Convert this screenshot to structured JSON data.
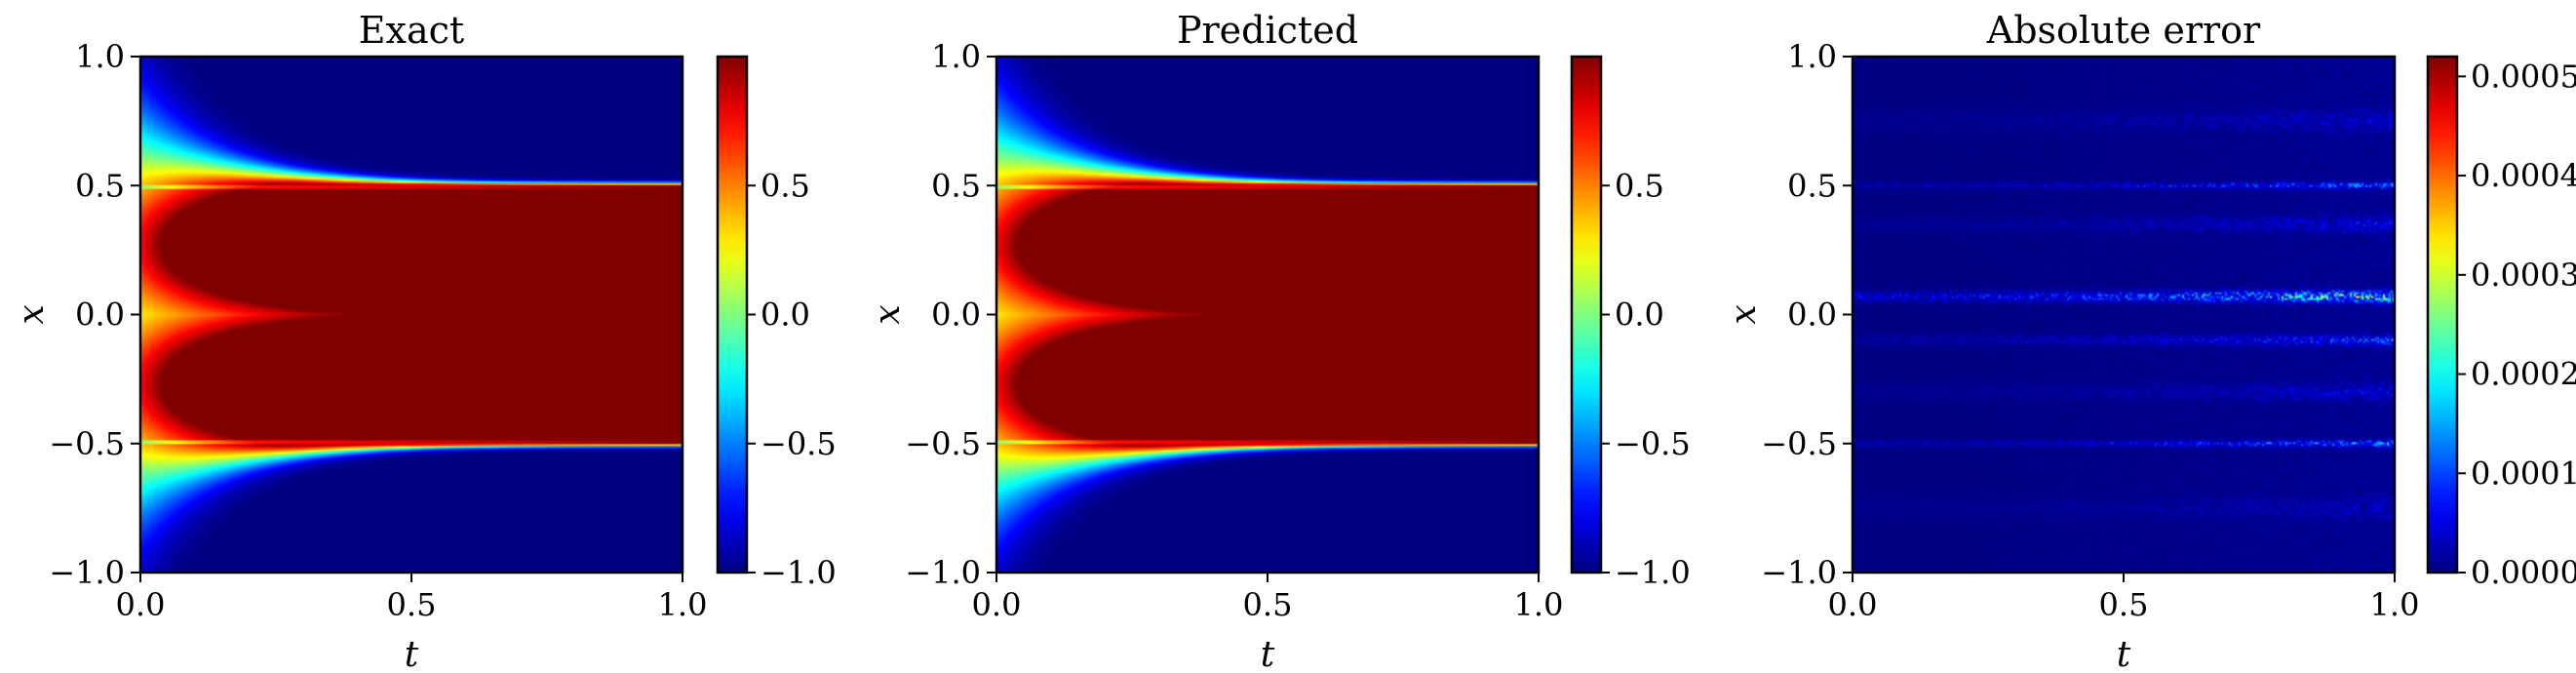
{
  "chart_data": [
    {
      "type": "heatmap",
      "title": "Exact",
      "xlabel": "t",
      "ylabel": "x",
      "xlim": [
        0.0,
        1.0
      ],
      "ylim": [
        -1.0,
        1.0
      ],
      "xticks": [
        "0.0",
        "0.5",
        "1.0"
      ],
      "yticks": [
        "−1.0",
        "−0.5",
        "0.0",
        "0.5",
        "1.0"
      ],
      "colormap": "jet",
      "colorbar": {
        "range": [
          -1.0,
          1.0
        ],
        "ticks": [
          "−1.0",
          "−0.5",
          "0.0",
          "0.5"
        ]
      },
      "field": "solution"
    },
    {
      "type": "heatmap",
      "title": "Predicted",
      "xlabel": "t",
      "ylabel": "x",
      "xlim": [
        0.0,
        1.0
      ],
      "ylim": [
        -1.0,
        1.0
      ],
      "xticks": [
        "0.0",
        "0.5",
        "1.0"
      ],
      "yticks": [
        "−1.0",
        "−0.5",
        "0.0",
        "0.5",
        "1.0"
      ],
      "colormap": "jet",
      "colorbar": {
        "range": [
          -1.0,
          1.0
        ],
        "ticks": [
          "−1.0",
          "−0.5",
          "0.0",
          "0.5"
        ]
      },
      "field": "solution"
    },
    {
      "type": "heatmap",
      "title": "Absolute error",
      "xlabel": "t",
      "ylabel": "x",
      "xlim": [
        0.0,
        1.0
      ],
      "ylim": [
        -1.0,
        1.0
      ],
      "xticks": [
        "0.0",
        "0.5",
        "1.0"
      ],
      "yticks": [
        "−1.0",
        "−0.5",
        "0.0",
        "0.5",
        "1.0"
      ],
      "colormap": "jet",
      "colorbar": {
        "range": [
          0.0,
          0.00052
        ],
        "ticks": [
          "0.0000",
          "0.0001",
          "0.0002",
          "0.0003",
          "0.0004",
          "0.0005"
        ]
      },
      "field": "error"
    }
  ]
}
